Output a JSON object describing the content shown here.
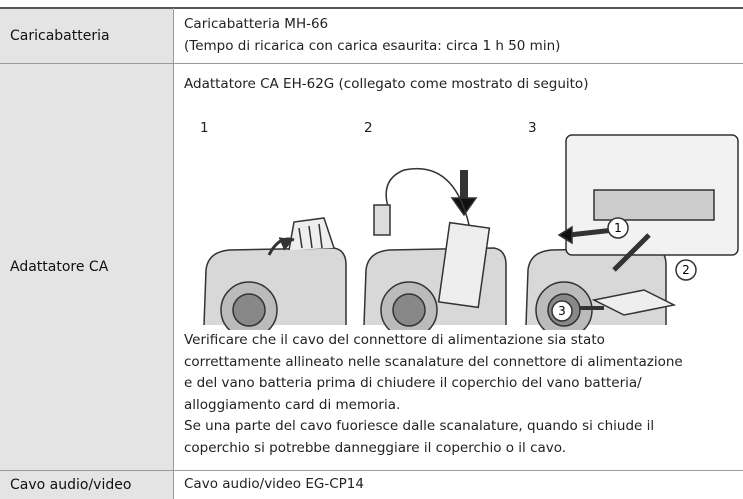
{
  "table": {
    "rows": [
      {
        "label": "Caricabatteria",
        "lines": [
          "Caricabatteria MH-66",
          "(Tempo di ricarica con carica esaurita: circa 1 h 50 min)"
        ]
      },
      {
        "label": "Adattatore CA",
        "heading": "Adattatore CA EH-62G (collegato come mostrato di seguito)",
        "steps": [
          "1",
          "2",
          "3"
        ],
        "callouts": [
          "1",
          "2",
          "3"
        ],
        "notes": [
          "Verificare che il cavo del connettore di alimentazione sia stato",
          "correttamente allineato nelle scanalature del connettore di alimentazione",
          "e del vano batteria prima di chiudere il coperchio del vano batteria/",
          "alloggiamento card di memoria.",
          "Se una parte del cavo fuoriesce dalle scanalature, quando si chiude il",
          "coperchio si potrebbe danneggiare il coperchio o il cavo."
        ]
      },
      {
        "label": "Cavo audio/video",
        "lines": [
          "Cavo audio/video EG-CP14"
        ]
      }
    ]
  }
}
